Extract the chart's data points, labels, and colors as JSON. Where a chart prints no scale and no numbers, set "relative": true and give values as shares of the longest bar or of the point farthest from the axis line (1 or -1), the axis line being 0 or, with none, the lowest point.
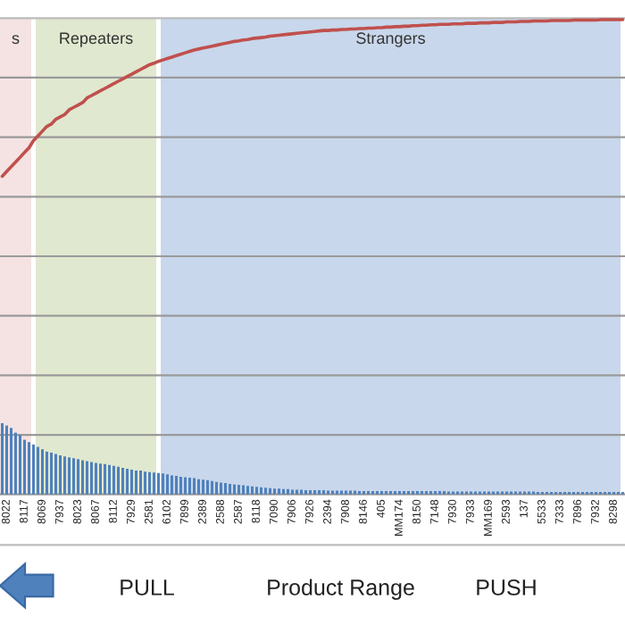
{
  "chart_data": {
    "type": "bar",
    "relative": true,
    "grid": "y",
    "categories": [
      null,
      "8022",
      null,
      null,
      null,
      "8117",
      null,
      null,
      null,
      "8069",
      null,
      null,
      null,
      "7937",
      null,
      null,
      null,
      "8023",
      null,
      null,
      null,
      "8067",
      null,
      null,
      null,
      "8112",
      null,
      null,
      null,
      "7929",
      null,
      null,
      null,
      "2581",
      null,
      null,
      null,
      "6102",
      null,
      null,
      null,
      "7899",
      null,
      null,
      null,
      "2389",
      null,
      null,
      null,
      "2588",
      null,
      null,
      null,
      "2587",
      null,
      null,
      null,
      "8118",
      null,
      null,
      null,
      "7090",
      null,
      null,
      null,
      "7906",
      null,
      null,
      null,
      "7926",
      null,
      null,
      null,
      "2394",
      null,
      null,
      null,
      "7908",
      null,
      null,
      null,
      "8146",
      null,
      null,
      null,
      "405",
      null,
      null,
      null,
      "MM174",
      null,
      null,
      null,
      "8150",
      null,
      null,
      null,
      "7148",
      null,
      null,
      null,
      "7930",
      null,
      null,
      null,
      "7933",
      null,
      null,
      null,
      "MM169",
      null,
      null,
      null,
      "2593",
      null,
      null,
      null,
      "137",
      null,
      null,
      null,
      "5533",
      null,
      null,
      null,
      "7333",
      null,
      null,
      null,
      "7896",
      null,
      null,
      null,
      "7932",
      null,
      null,
      null,
      "8298",
      null,
      null
    ],
    "series": [
      {
        "type": "bar",
        "color": "#4f81bd",
        "values": [
          0.15,
          0.145,
          0.14,
          0.13,
          0.125,
          0.115,
          0.11,
          0.105,
          0.1,
          0.095,
          0.09,
          0.088,
          0.085,
          0.082,
          0.08,
          0.078,
          0.076,
          0.074,
          0.072,
          0.07,
          0.068,
          0.066,
          0.065,
          0.064,
          0.062,
          0.06,
          0.058,
          0.056,
          0.054,
          0.052,
          0.05,
          0.05,
          0.048,
          0.047,
          0.046,
          0.045,
          0.044,
          0.042,
          0.04,
          0.039,
          0.037,
          0.036,
          0.035,
          0.034,
          0.032,
          0.031,
          0.03,
          0.028,
          0.026,
          0.025,
          0.024,
          0.022,
          0.021,
          0.02,
          0.019,
          0.018,
          0.017,
          0.016,
          0.015,
          0.014,
          0.013,
          0.012,
          0.012,
          0.011,
          0.011,
          0.01,
          0.01,
          0.01,
          0.009,
          0.009,
          0.009,
          0.009,
          0.009,
          0.008,
          0.008,
          0.008,
          0.008,
          0.008,
          0.008,
          0.008,
          0.007,
          0.007,
          0.007,
          0.007,
          0.007,
          0.007,
          0.007,
          0.007,
          0.007,
          0.007,
          0.007,
          0.007,
          0.007,
          0.007,
          0.007,
          0.007,
          0.007,
          0.007,
          0.007,
          0.007,
          0.006,
          0.006,
          0.006,
          0.006,
          0.006,
          0.006,
          0.006,
          0.006,
          0.006,
          0.006,
          0.006,
          0.006,
          0.006,
          0.006,
          0.006,
          0.006,
          0.006,
          0.006,
          0.006,
          0.006,
          0.005,
          0.005,
          0.005,
          0.005,
          0.005,
          0.005,
          0.005,
          0.005,
          0.005,
          0.005,
          0.005,
          0.005,
          0.005,
          0.005,
          0.005,
          0.005,
          0.005,
          0.005,
          0.005,
          0.005
        ]
      },
      {
        "type": "line",
        "color": "#c0504d",
        "values": [
          0.67,
          0.68,
          0.69,
          0.7,
          0.71,
          0.72,
          0.73,
          0.745,
          0.755,
          0.765,
          0.775,
          0.78,
          0.79,
          0.795,
          0.8,
          0.81,
          0.815,
          0.82,
          0.825,
          0.835,
          0.84,
          0.845,
          0.85,
          0.855,
          0.86,
          0.865,
          0.87,
          0.875,
          0.88,
          0.885,
          0.89,
          0.895,
          0.9,
          0.905,
          0.908,
          0.912,
          0.915,
          0.918,
          0.921,
          0.924,
          0.927,
          0.93,
          0.933,
          0.936,
          0.938,
          0.94,
          0.942,
          0.944,
          0.946,
          0.948,
          0.95,
          0.952,
          0.954,
          0.955,
          0.957,
          0.958,
          0.96,
          0.961,
          0.962,
          0.963,
          0.965,
          0.966,
          0.967,
          0.968,
          0.969,
          0.97,
          0.971,
          0.972,
          0.973,
          0.974,
          0.975,
          0.976,
          0.977,
          0.977,
          0.978,
          0.978,
          0.979,
          0.979,
          0.98,
          0.98,
          0.981,
          0.981,
          0.982,
          0.982,
          0.983,
          0.983,
          0.984,
          0.984,
          0.985,
          0.985,
          0.986,
          0.986,
          0.987,
          0.987,
          0.988,
          0.988,
          0.989,
          0.989,
          0.99,
          0.99,
          0.99,
          0.991,
          0.991,
          0.991,
          0.992,
          0.992,
          0.992,
          0.993,
          0.993,
          0.993,
          0.994,
          0.994,
          0.994,
          0.995,
          0.995,
          0.995,
          0.996,
          0.996,
          0.996,
          0.997,
          0.997,
          0.997,
          0.997,
          0.998,
          0.998,
          0.998,
          0.998,
          0.998,
          0.999,
          0.999,
          0.999,
          0.999,
          0.999,
          0.999,
          1,
          1,
          1,
          1,
          1,
          1
        ]
      }
    ],
    "bands": [
      {
        "axis": "x",
        "from": "8022",
        "to": "8117",
        "label": "s",
        "color": "#f5e3e3"
      },
      {
        "axis": "x",
        "from": "8069",
        "to": "2581",
        "label": "Repeaters",
        "color": "#e0e8cf"
      },
      {
        "axis": "x",
        "from": "6102",
        "to": "8298",
        "label": "Strangers",
        "color": "#c8d7eb"
      }
    ],
    "annotations": [
      "PULL",
      "Product Range",
      "PUSH"
    ]
  }
}
